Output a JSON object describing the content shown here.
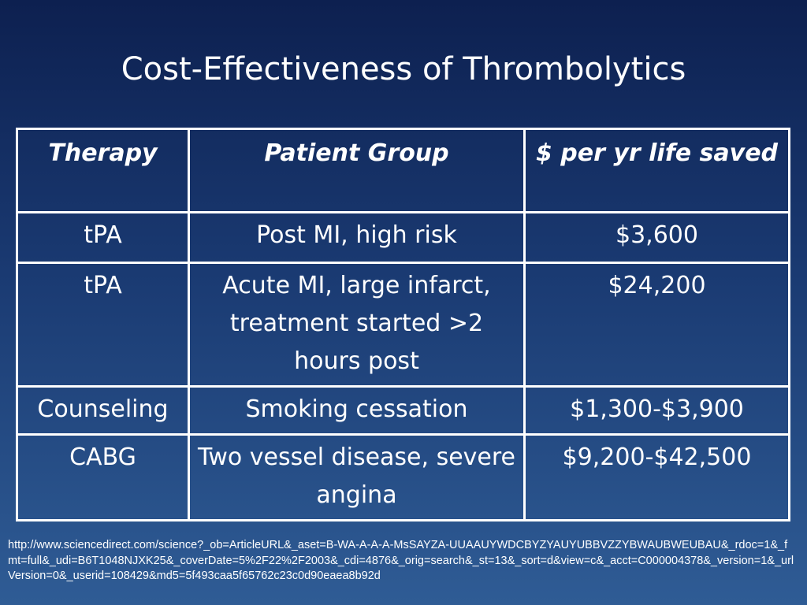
{
  "slide": {
    "title": "Cost-Effectiveness of Thrombolytics"
  },
  "table": {
    "headers": [
      "Therapy",
      "Patient Group",
      "$ per yr life saved"
    ],
    "rows": [
      [
        "tPA",
        "Post MI, high risk",
        "$3,600"
      ],
      [
        "tPA",
        "Acute MI, large infarct, treatment started >2 hours post",
        "$24,200"
      ],
      [
        "Counseling",
        "Smoking cessation",
        "$1,300-$3,900"
      ],
      [
        "CABG",
        "Two vessel disease, severe angina",
        "$9,200-$42,500"
      ]
    ]
  },
  "source": {
    "url": "http://www.sciencedirect.com/science?_ob=ArticleURL&_aset=B-WA-A-A-A-MsSAYZA-UUAAUYWDCBYZYAUYUBBVZZYBWAUBWEUBAU&_rdoc=1&_fmt=full&_udi=B6T1048NJXK25&_coverDate=5%2F22%2F2003&_cdi=4876&_orig=search&_st=13&_sort=d&view=c&_acct=C000004378&_version=1&_urlVersion=0&_userid=108429&md5=5f493caa5f65762c23c0d90eaea8b92d"
  },
  "colors": {
    "background_top": "#0d2050",
    "background_bottom": "#2f5c95",
    "text": "#ffffff",
    "table_border": "#ffffff"
  }
}
